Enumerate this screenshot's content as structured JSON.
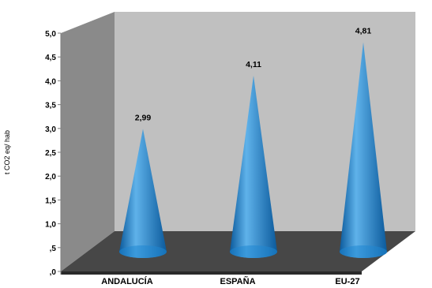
{
  "chart_data": {
    "type": "bar",
    "style": "3d-cone",
    "categories": [
      "ANDALUCÍA",
      "ESPAÑA",
      "EU-27"
    ],
    "values": [
      2.99,
      4.11,
      4.81
    ],
    "data_labels": [
      "2,99",
      "4,11",
      "4,81"
    ],
    "ylabel": "t CO2 eq/ hab",
    "ylim": [
      0,
      5
    ],
    "yticks": [
      ",0",
      ",5",
      "1,0",
      "1,5",
      "2,0",
      "2,5",
      "3,0",
      "3,5",
      "4,0",
      "4,5",
      "5,0"
    ],
    "grid": false,
    "legend": "none",
    "colors": {
      "wall": "#c0c0c0",
      "side_wall": "#8a8a8a",
      "floor": "#474747",
      "floor_edge": "#2a2a2a",
      "cone_light": "#5fb2ea",
      "cone_mid": "#1f86d1",
      "cone_dark": "#0b5a9c"
    }
  }
}
